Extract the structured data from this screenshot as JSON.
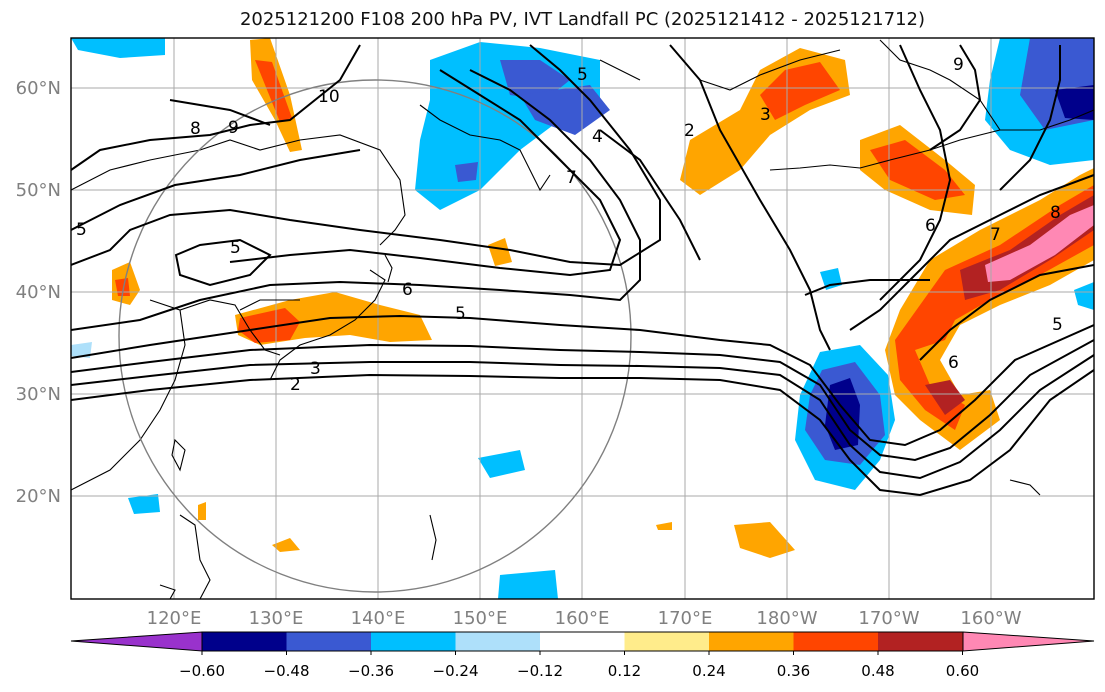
{
  "title": "2025121200 F108 200 hPa PV, IVT Landfall PC (2025121412 - 2025121712)",
  "map": {
    "lon_labels": [
      "120°E",
      "130°E",
      "140°E",
      "150°E",
      "160°E",
      "170°E",
      "180°W",
      "170°W",
      "160°W"
    ],
    "lat_labels": [
      "60°N",
      "50°N",
      "40°N",
      "30°N",
      "20°N"
    ],
    "contour_labels": [
      "10",
      "9",
      "8",
      "2",
      "3",
      "4",
      "5",
      "6",
      "7",
      "3",
      "2",
      "5",
      "6",
      "5",
      "5",
      "6",
      "7",
      "8",
      "9",
      "5"
    ],
    "axis_label_color": "#808080"
  },
  "colorbar": {
    "ticks": [
      "−0.60",
      "−0.48",
      "−0.36",
      "−0.24",
      "−0.12",
      "0.12",
      "0.24",
      "0.36",
      "0.48",
      "0.60"
    ],
    "colors": [
      "#9932cc",
      "#00008b",
      "#3a59d2",
      "#00bfff",
      "#aee0fa",
      "#ffffff",
      "#ffec8b",
      "#ffa500",
      "#ff4500",
      "#b22222",
      "#ff88b4"
    ]
  }
}
